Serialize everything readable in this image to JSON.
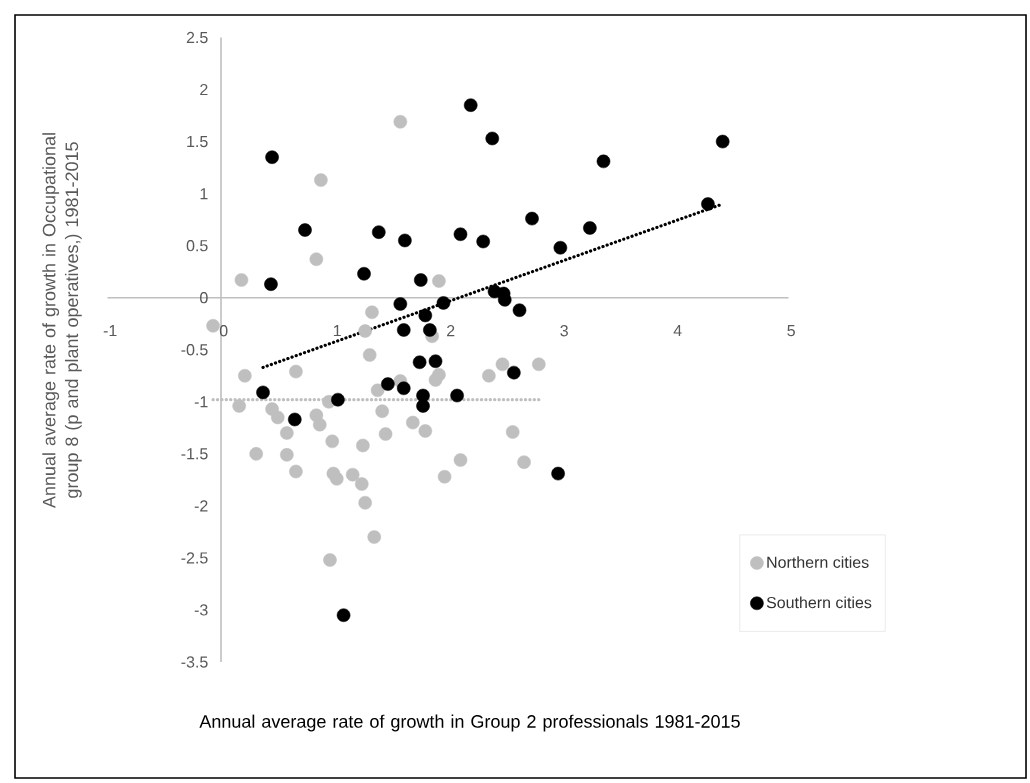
{
  "chart_data": {
    "type": "scatter",
    "xlabel": "Annual average rate of growth in Group 2 professionals 1981-2015",
    "ylabel": "Annual average rate of growth in Occupational group 8 (p and plant operatives,) 1981-2015",
    "xlim": [
      -1,
      5
    ],
    "ylim": [
      -3.5,
      2.5
    ],
    "xticks": [
      -1,
      0,
      1,
      2,
      3,
      4,
      5
    ],
    "yticks": [
      -3.5,
      -3,
      -2.5,
      -2,
      -1.5,
      -1,
      -0.5,
      0,
      0.5,
      1,
      1.5,
      2,
      2.5
    ],
    "grid": false,
    "legend": "bottom right",
    "marker": "circle",
    "series": [
      {
        "name": "Northern cities",
        "color": "#bfbfbf",
        "x": [
          0.18,
          0.88,
          0.84,
          1.58,
          1.92,
          1.33,
          -0.07,
          1.27,
          1.86,
          1.31,
          0.21,
          0.66,
          0.16,
          0.45,
          0.5,
          0.31,
          0.58,
          0.58,
          0.66,
          0.84,
          0.87,
          0.95,
          0.98,
          0.99,
          1.02,
          1.16,
          1.25,
          1.24,
          1.27,
          1.38,
          1.42,
          1.45,
          1.58,
          1.69,
          1.8,
          1.89,
          1.92,
          1.97,
          2.11,
          2.36,
          2.48,
          2.8,
          2.57,
          2.67,
          1.35,
          0.96
        ],
        "values": [
          0.17,
          1.13,
          0.37,
          1.69,
          0.16,
          -0.14,
          -0.27,
          -0.32,
          -0.37,
          -0.55,
          -0.75,
          -0.71,
          -1.04,
          -1.07,
          -1.15,
          -1.5,
          -1.3,
          -1.51,
          -1.67,
          -1.13,
          -1.22,
          -1.0,
          -1.38,
          -1.69,
          -1.74,
          -1.7,
          -1.42,
          -1.79,
          -1.97,
          -0.89,
          -1.09,
          -1.31,
          -0.8,
          -1.2,
          -1.28,
          -0.79,
          -0.74,
          -1.72,
          -1.56,
          -0.75,
          -0.64,
          -0.64,
          -1.29,
          -1.58,
          -2.3,
          -2.52
        ]
      },
      {
        "name": "Southern cities",
        "color": "#000000",
        "x": [
          0.45,
          0.44,
          0.74,
          1.26,
          1.39,
          1.62,
          1.76,
          2.11,
          2.2,
          2.31,
          2.39,
          1.58,
          1.96,
          1.8,
          2.41,
          3.37,
          4.42,
          4.29,
          2.74,
          3.25,
          2.99,
          2.49,
          2.5,
          2.63,
          1.61,
          1.84,
          1.75,
          1.89,
          1.47,
          1.61,
          1.78,
          1.78,
          2.08,
          0.37,
          1.03,
          0.65,
          2.58,
          2.97,
          1.08
        ],
        "values": [
          1.35,
          0.13,
          0.65,
          0.23,
          0.63,
          0.55,
          0.17,
          0.61,
          1.85,
          0.54,
          1.53,
          -0.06,
          -0.05,
          -0.17,
          0.06,
          1.31,
          1.5,
          0.9,
          0.76,
          0.67,
          0.48,
          0.04,
          -0.02,
          -0.12,
          -0.31,
          -0.31,
          -0.62,
          -0.61,
          -0.83,
          -0.87,
          -0.94,
          -1.04,
          -0.94,
          -0.91,
          -0.98,
          -1.17,
          -0.72,
          -1.69,
          -3.05
        ]
      },
      {
        "type": "line",
        "color": "#bfbfbf",
        "line_style": "dotted",
        "marker": "none",
        "x": [
          -0.07,
          2.8
        ],
        "values": [
          -0.98,
          -0.98
        ]
      },
      {
        "type": "line",
        "color": "#000000",
        "line_style": "dotted",
        "marker": "none",
        "x": [
          0.37,
          4.42
        ],
        "values": [
          -0.67,
          0.9
        ]
      }
    ]
  }
}
